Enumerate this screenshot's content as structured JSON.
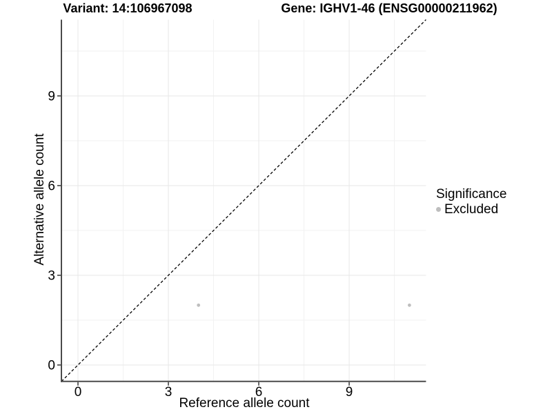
{
  "chart_data": {
    "type": "scatter",
    "title_variant": "Variant: 14:106967098",
    "title_gene": "Gene: IGHV1-46 (ENSG00000211962)",
    "xlabel": "Reference allele count",
    "ylabel": "Alternative allele count",
    "xlim": [
      -0.55,
      11.55
    ],
    "ylim": [
      -0.55,
      11.55
    ],
    "x_major_ticks": [
      0,
      3,
      6,
      9
    ],
    "y_major_ticks": [
      0,
      3,
      6,
      9
    ],
    "x_tick_labels": [
      "0",
      "3",
      "6",
      "9"
    ],
    "y_tick_labels": [
      "0",
      "3",
      "6",
      "9"
    ],
    "x_minor_ticks": [
      1.5,
      4.5,
      7.5,
      10.5
    ],
    "y_minor_ticks": [
      1.5,
      4.5,
      7.5,
      10.5
    ],
    "grid": "major+minor",
    "legend": {
      "title": "Significance",
      "position": "right",
      "entries": [
        {
          "label": "Excluded",
          "color": "#bebebe"
        }
      ]
    },
    "series": [
      {
        "name": "Excluded",
        "color": "#bebebe",
        "points": [
          {
            "x": 4,
            "y": 2
          },
          {
            "x": 11,
            "y": 2
          }
        ]
      }
    ],
    "identity_line": {
      "slope": 1,
      "intercept": 0,
      "style": "dashed",
      "color": "#000000"
    }
  },
  "style": {
    "background": "#ffffff",
    "text_color": "#000000",
    "axis_line_color": "#4a4a4a",
    "tick_mark_color": "#333333",
    "grid_major_color": "#e7e7e7",
    "grid_minor_color": "#f2f2f2",
    "point_color": "#bebebe"
  }
}
